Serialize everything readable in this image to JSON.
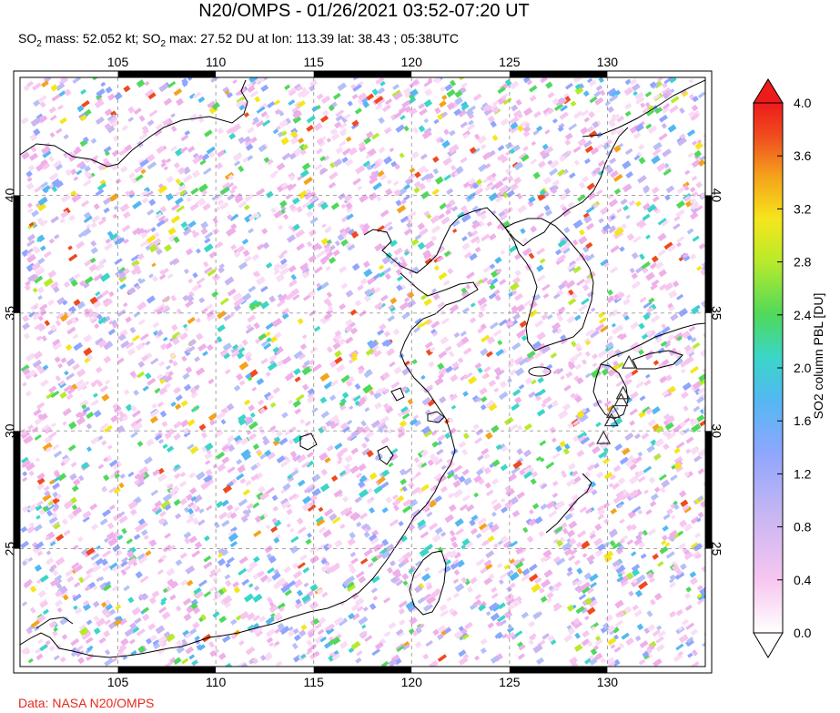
{
  "title": "N20/OMPS - 01/26/2021 03:52-07:20 UT",
  "subtitle": {
    "so2_a": "SO",
    "sub_a": "2",
    "mass_text": " mass: 52.052 kt; SO",
    "sub_b": "2",
    "max_text": " max: 27.52 DU at lon: 113.39 lat: 38.43 ; 05:38UTC"
  },
  "source": "Data: NASA N20/OMPS",
  "map": {
    "lon_ticks": [
      "105",
      "110",
      "115",
      "120",
      "125",
      "130"
    ],
    "lat_ticks": [
      "25",
      "30",
      "35",
      "40"
    ],
    "lon_range": [
      100,
      135
    ],
    "lat_range": [
      20,
      45
    ],
    "gridlines": "dashed",
    "frame_style": "black/white alternating"
  },
  "colorbar": {
    "label": "SO2 column PBL [DU]",
    "ticks": [
      "0.0",
      "0.4",
      "0.8",
      "1.2",
      "1.6",
      "2.0",
      "2.4",
      "2.8",
      "3.2",
      "3.6",
      "4.0"
    ],
    "range": [
      0,
      4
    ],
    "colors": [
      "#ffffff",
      "#f7c6f0",
      "#c9b6f2",
      "#8fa6ff",
      "#53b8f2",
      "#3ad6c8",
      "#4fd95b",
      "#b7ea2c",
      "#f5e61c",
      "#f5a31b",
      "#ef4a1f",
      "#ee1b1b"
    ]
  },
  "volcano_markers": "open triangles",
  "volcanoes": [
    {
      "lon": 131.1,
      "lat": 32.9
    },
    {
      "lon": 130.8,
      "lat": 31.6
    },
    {
      "lon": 130.7,
      "lat": 31.3
    },
    {
      "lon": 130.3,
      "lat": 30.8
    },
    {
      "lon": 130.2,
      "lat": 30.45
    },
    {
      "lon": 129.8,
      "lat": 29.7
    }
  ]
}
